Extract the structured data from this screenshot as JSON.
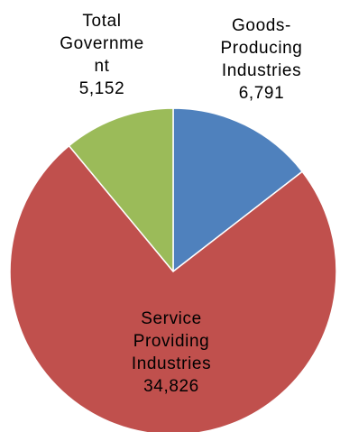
{
  "chart_data": {
    "type": "pie",
    "title": "",
    "slices": [
      {
        "name": "Goods-Producing Industries",
        "value": 6791,
        "value_label": "6,791",
        "color": "#4F81BD",
        "label_lines": [
          "Goods-",
          "Producing",
          "Industries"
        ]
      },
      {
        "name": "Service Providing Industries",
        "value": 34826,
        "value_label": "34,826",
        "color": "#C0504D",
        "label_lines": [
          "Service",
          "Providing",
          "Industries"
        ]
      },
      {
        "name": "Total Government",
        "value": 5152,
        "value_label": "5,152",
        "color": "#9BBB59",
        "label_lines": [
          "Total",
          "Governme",
          "nt"
        ]
      }
    ],
    "start": "12 o'clock",
    "direction": "clockwise",
    "legend": "none",
    "edge_color": "#FFFFFF"
  }
}
